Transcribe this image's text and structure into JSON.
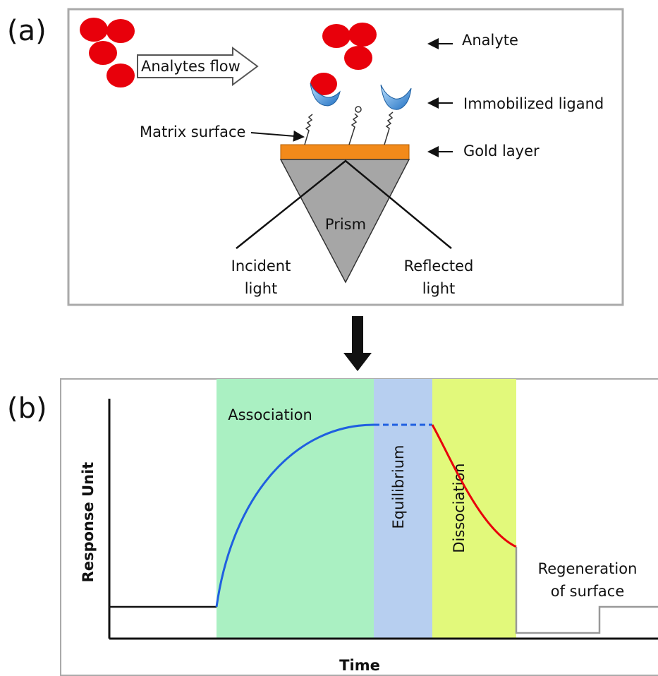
{
  "panel_a": {
    "label": "(a)",
    "flow": "Analytes flow",
    "analyte": "Analyte",
    "ligand": "Immobilized ligand",
    "matrix": "Matrix surface",
    "gold": "Gold layer",
    "prism": "Prism",
    "incident": [
      "Incident",
      "light"
    ],
    "reflected": [
      "Reflected",
      "light"
    ]
  },
  "panel_b": {
    "label": "(b)",
    "association": "Association",
    "equilibrium": "Equilibrium",
    "dissociation": "Dissociation",
    "regeneration": [
      "Regeneration",
      "of surface"
    ],
    "y_axis": "Response Unit",
    "x_axis": "Time"
  }
}
